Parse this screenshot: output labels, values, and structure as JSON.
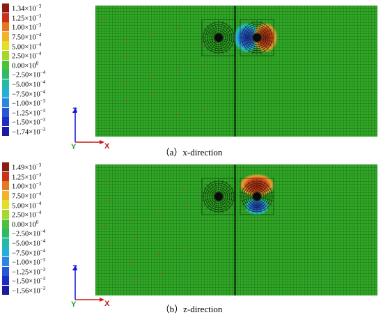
{
  "panels": [
    {
      "id": "x",
      "caption": "（a）x-direction",
      "legend": [
        {
          "base": "1.34×10",
          "exp": "−3",
          "color": "#8c1c10"
        },
        {
          "base": "1.25×10",
          "exp": "−3",
          "color": "#c8321a"
        },
        {
          "base": "1.00×10",
          "exp": "−3",
          "color": "#e8781f"
        },
        {
          "base": "7.50×10",
          "exp": "−4",
          "color": "#f0b42a"
        },
        {
          "base": "5.00×10",
          "exp": "−4",
          "color": "#e4de24"
        },
        {
          "base": "2.50×10",
          "exp": "−4",
          "color": "#a6d82c"
        },
        {
          "base": "0.00×10",
          "exp": "0",
          "color": "#4cc23a"
        },
        {
          "base": "−2.50×10",
          "exp": "−4",
          "color": "#2fbb66"
        },
        {
          "base": "−5.00×10",
          "exp": "−4",
          "color": "#22bca6"
        },
        {
          "base": "−7.50×10",
          "exp": "−4",
          "color": "#21b2d6"
        },
        {
          "base": "−1.00×10",
          "exp": "−3",
          "color": "#2a88e2"
        },
        {
          "base": "−1.25×10",
          "exp": "−3",
          "color": "#2458d8"
        },
        {
          "base": "−1.50×10",
          "exp": "−3",
          "color": "#1d2cc4"
        },
        {
          "base": "−1.74×10",
          "exp": "−3",
          "color": "#1b1aa0"
        }
      ]
    },
    {
      "id": "z",
      "caption": "（b）z-direction",
      "legend": [
        {
          "base": "1.49×10",
          "exp": "−3",
          "color": "#8c1c10"
        },
        {
          "base": "1.25×10",
          "exp": "−3",
          "color": "#c8321a"
        },
        {
          "base": "1.00×10",
          "exp": "−3",
          "color": "#e8781f"
        },
        {
          "base": "7.50×10",
          "exp": "−4",
          "color": "#f0b42a"
        },
        {
          "base": "5.00×10",
          "exp": "−4",
          "color": "#e4de24"
        },
        {
          "base": "2.50×10",
          "exp": "−4",
          "color": "#a6d82c"
        },
        {
          "base": "0.00×10",
          "exp": "0",
          "color": "#4cc23a"
        },
        {
          "base": "−2.50×10",
          "exp": "−4",
          "color": "#2fbb66"
        },
        {
          "base": "−5.00×10",
          "exp": "−4",
          "color": "#22bca6"
        },
        {
          "base": "−7.50×10",
          "exp": "−4",
          "color": "#21b2d6"
        },
        {
          "base": "−1.00×10",
          "exp": "−3",
          "color": "#2a88e2"
        },
        {
          "base": "−1.25×10",
          "exp": "−3",
          "color": "#2458d8"
        },
        {
          "base": "−1.50×10",
          "exp": "−3",
          "color": "#1d2cc4"
        },
        {
          "base": "−1.56×10",
          "exp": "−3",
          "color": "#1b1aa0"
        }
      ]
    }
  ],
  "axes": {
    "vertical": "Z",
    "horizontal": "X",
    "out_of_plane": "Y"
  },
  "colors": {
    "mesh_background": "#2fa826",
    "mesh_line": "#1a5e14",
    "axis_z": "#1a1ad8",
    "axis_x": "#c81818",
    "axis_y": "#2aa02a"
  }
}
